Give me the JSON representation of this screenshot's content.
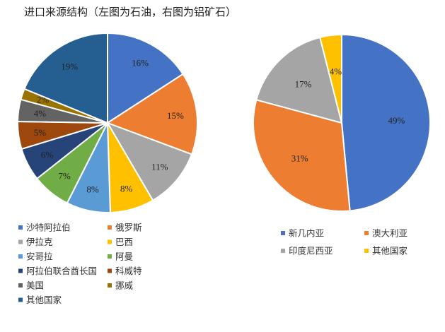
{
  "page": {
    "title": "进口来源结构（左图为石油，右图为铝矿石）"
  },
  "chart_data": [
    {
      "type": "pie",
      "title": "",
      "slices": [
        {
          "name": "沙特阿拉伯",
          "value": 16,
          "label": "16%",
          "color": "#4472C4"
        },
        {
          "name": "俄罗斯",
          "value": 15,
          "label": "15%",
          "color": "#ED7D31"
        },
        {
          "name": "伊拉克",
          "value": 11,
          "label": "11%",
          "color": "#A5A5A5"
        },
        {
          "name": "巴西",
          "value": 8,
          "label": "8%",
          "color": "#FFC000"
        },
        {
          "name": "安哥拉",
          "value": 8,
          "label": "8%",
          "color": "#5B9BD5"
        },
        {
          "name": "阿曼",
          "value": 7,
          "label": "7%",
          "color": "#70AD47"
        },
        {
          "name": "阿拉伯联合酋长国",
          "value": 6,
          "label": "6%",
          "color": "#264478"
        },
        {
          "name": "科威特",
          "value": 5,
          "label": "5%",
          "color": "#9E480E"
        },
        {
          "name": "美国",
          "value": 4,
          "label": "4%",
          "color": "#636363"
        },
        {
          "name": "挪威",
          "value": 2,
          "label": "2%",
          "color": "#997300"
        },
        {
          "name": "其他国家",
          "value": 19,
          "label": "19%",
          "color": "#255E91"
        }
      ],
      "legend_position": "bottom"
    },
    {
      "type": "pie",
      "title": "",
      "slices": [
        {
          "name": "新几内亚",
          "value": 49,
          "label": "49%",
          "color": "#4472C4"
        },
        {
          "name": "澳大利亚",
          "value": 31,
          "label": "31%",
          "color": "#ED7D31"
        },
        {
          "name": "印度尼西亚",
          "value": 17,
          "label": "17%",
          "color": "#A5A5A5"
        },
        {
          "name": "其他国家",
          "value": 4,
          "label": "4%",
          "color": "#FFC000"
        }
      ],
      "legend_position": "bottom"
    }
  ]
}
